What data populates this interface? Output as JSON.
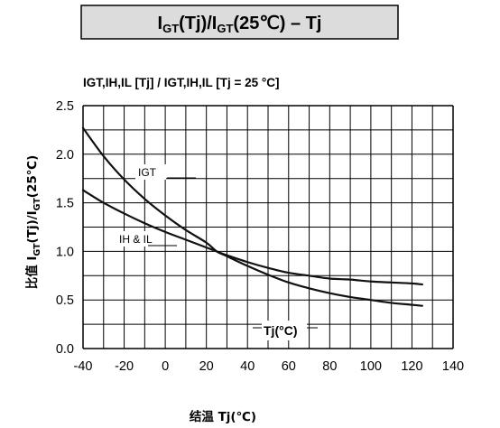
{
  "chart_data": {
    "type": "line",
    "title": {
      "parts": [
        {
          "text": "I",
          "sub": false
        },
        {
          "text": "GT",
          "sub": true
        },
        {
          "text": "(Tj)/I",
          "sub": false
        },
        {
          "text": "GT",
          "sub": true
        },
        {
          "text": "(25℃) – Tj",
          "sub": false
        }
      ]
    },
    "subtitle": "IGT,IH,IL [Tj] / IGT,IH,IL [Tj = 25 °C]",
    "ylabel": {
      "parts": [
        {
          "text": "比值 I",
          "sub": false
        },
        {
          "text": "GT",
          "sub": true
        },
        {
          "text": "(Tj)/I",
          "sub": false
        },
        {
          "text": "GT",
          "sub": true
        },
        {
          "text": "(25℃)",
          "sub": false
        }
      ]
    },
    "xlabel": "结温 Tj(℃)",
    "axis_annotation": "Tj(°C)",
    "xlim": [
      -40,
      140
    ],
    "ylim": [
      0,
      2.5
    ],
    "x_ticks": [
      "-40",
      "-20",
      "0",
      "20",
      "40",
      "60",
      "80",
      "100",
      "120",
      "140"
    ],
    "y_ticks": [
      "0.0",
      "0.5",
      "1.0",
      "1.5",
      "2.0",
      "2.5"
    ],
    "grid": true,
    "series": [
      {
        "name": "IGT",
        "x": [
          -40,
          -30,
          -20,
          -10,
          0,
          10,
          20,
          25,
          30,
          40,
          50,
          60,
          70,
          80,
          90,
          100,
          110,
          120,
          125
        ],
        "y": [
          2.27,
          1.98,
          1.74,
          1.54,
          1.37,
          1.22,
          1.09,
          1.0,
          0.95,
          0.85,
          0.76,
          0.68,
          0.62,
          0.57,
          0.53,
          0.5,
          0.47,
          0.45,
          0.44
        ]
      },
      {
        "name": "IH & IL",
        "x": [
          -40,
          -30,
          -20,
          -10,
          0,
          10,
          20,
          25,
          30,
          40,
          50,
          60,
          70,
          80,
          90,
          100,
          110,
          120,
          125
        ],
        "y": [
          1.63,
          1.5,
          1.39,
          1.29,
          1.2,
          1.12,
          1.04,
          1.0,
          0.96,
          0.89,
          0.83,
          0.78,
          0.75,
          0.72,
          0.71,
          0.69,
          0.68,
          0.67,
          0.66
        ]
      }
    ]
  },
  "labels": {
    "igt": "IGT",
    "ih_il": "IH & IL"
  }
}
